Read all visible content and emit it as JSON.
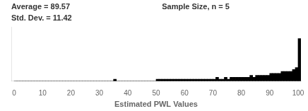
{
  "chart_data": {
    "type": "histogram",
    "xlabel": "Estimated PWL Values",
    "annotations": [
      "Average = 89.57",
      "Std. Dev. = 11.42",
      "Sample Size, n = 5"
    ],
    "bins": [
      0,
      1,
      2,
      3,
      4,
      5,
      6,
      7,
      8,
      9,
      10,
      11,
      12,
      13,
      14,
      15,
      16,
      17,
      18,
      19,
      20,
      21,
      22,
      23,
      24,
      25,
      26,
      27,
      28,
      29,
      30,
      31,
      32,
      33,
      34,
      35,
      36,
      37,
      38,
      39,
      40,
      41,
      42,
      43,
      44,
      45,
      46,
      47,
      48,
      49,
      50,
      51,
      52,
      53,
      54,
      55,
      56,
      57,
      58,
      59,
      60,
      61,
      62,
      63,
      64,
      65,
      66,
      67,
      68,
      69,
      70,
      71,
      72,
      73,
      74,
      75,
      76,
      77,
      78,
      79,
      80,
      81,
      82,
      83,
      84,
      85,
      86,
      87,
      88,
      89,
      90,
      91,
      92,
      93,
      94,
      95,
      96,
      97,
      98,
      99,
      100,
      101
    ],
    "values": [
      0,
      0,
      0,
      0,
      0,
      0,
      0,
      0,
      0,
      0,
      0,
      0,
      0,
      0,
      0,
      0,
      0,
      0,
      0,
      0,
      0,
      0,
      0,
      0,
      0,
      0,
      0,
      0,
      0,
      0,
      0,
      0,
      0,
      0,
      0,
      1,
      0,
      0,
      0,
      0,
      0,
      0,
      0,
      0,
      0,
      0,
      0,
      0,
      0,
      0,
      1,
      1,
      1,
      1,
      1,
      1,
      1,
      1,
      1,
      1,
      1,
      1,
      1,
      1,
      1,
      1,
      1,
      1,
      1,
      1,
      1,
      2,
      1,
      1,
      2,
      1,
      2,
      2,
      2,
      2,
      2,
      2,
      2,
      3,
      2,
      3,
      3,
      3,
      3,
      3,
      4,
      4,
      4,
      4,
      5,
      5,
      5,
      5,
      6,
      7,
      22
    ],
    "color": "#000000",
    "xlim": [
      -1,
      101
    ],
    "xticks": [
      0,
      10,
      20,
      30,
      40,
      50,
      60,
      70,
      80,
      90,
      100
    ],
    "ylim": [
      0,
      28
    ],
    "grid": false,
    "tick_labels": "x"
  }
}
